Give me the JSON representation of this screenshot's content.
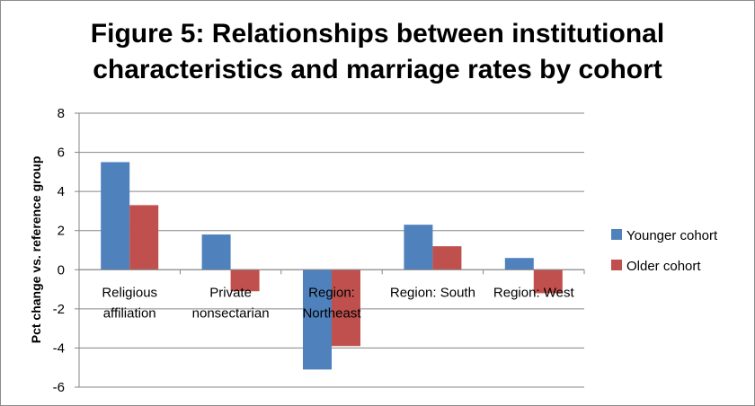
{
  "chart_data": {
    "type": "bar",
    "title_lines": [
      "Figure 5: Relationships between institutional",
      "characteristics and marriage rates by cohort"
    ],
    "ylabel": "Pct change vs. reference group",
    "xlabel": "",
    "ylim": [
      -6,
      8
    ],
    "yticks": [
      "8",
      "6",
      "4",
      "2",
      "0",
      "-2",
      "-4",
      "-6"
    ],
    "grid": true,
    "legend_position": "right",
    "categories": [
      [
        "Religious",
        "affiliation"
      ],
      [
        "Private",
        "nonsectarian"
      ],
      [
        "Region:",
        "Northeast"
      ],
      [
        "Region: South"
      ],
      [
        "Region: West"
      ]
    ],
    "series": [
      {
        "name": "Younger cohort",
        "color": "#4f81bd",
        "values": [
          5.5,
          1.8,
          -5.1,
          2.3,
          0.6
        ]
      },
      {
        "name": "Older cohort",
        "color": "#c0504d",
        "values": [
          3.3,
          -1.1,
          -3.9,
          1.2,
          -1.2
        ]
      }
    ]
  }
}
